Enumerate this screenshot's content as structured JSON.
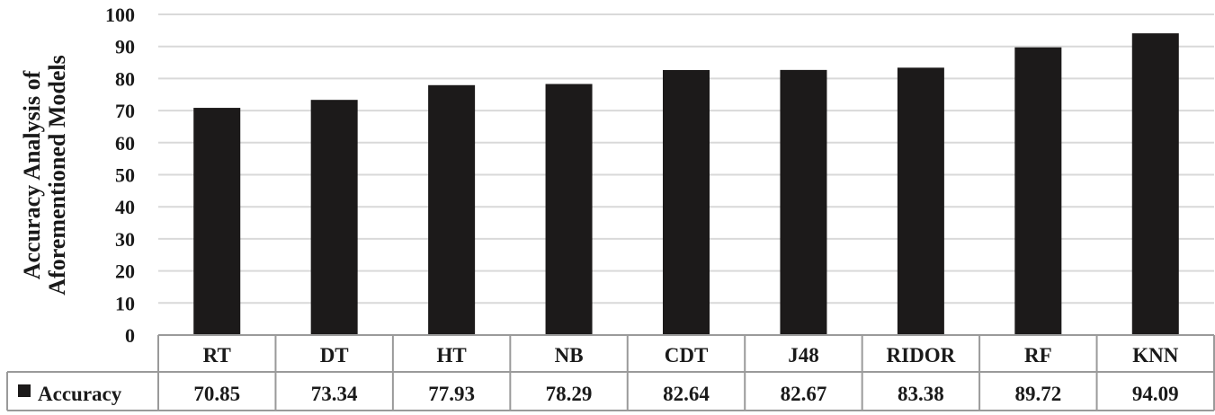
{
  "chart_data": {
    "type": "bar",
    "ylabel_lines": [
      "Accuracy Analysis of",
      "Aforementioned Models"
    ],
    "categories": [
      "RT",
      "DT",
      "HT",
      "NB",
      "CDT",
      "J48",
      "RIDOR",
      "RF",
      "KNN"
    ],
    "series": [
      {
        "name": "Accuracy",
        "values": [
          70.85,
          73.34,
          77.93,
          78.29,
          82.64,
          82.67,
          83.38,
          89.72,
          94.09
        ]
      }
    ],
    "data_labels": [
      "70.85",
      "73.34",
      "77.93",
      "78.29",
      "82.64",
      "82.67",
      "83.38",
      "89.72",
      "94.09"
    ],
    "ylim": [
      0,
      100
    ],
    "yticks": [
      0,
      10,
      20,
      30,
      40,
      50,
      60,
      70,
      80,
      90,
      100
    ],
    "grid": true,
    "legend": "data-table",
    "bar_color": "#1c1a1a",
    "grid_color": "#d9d9d9"
  }
}
